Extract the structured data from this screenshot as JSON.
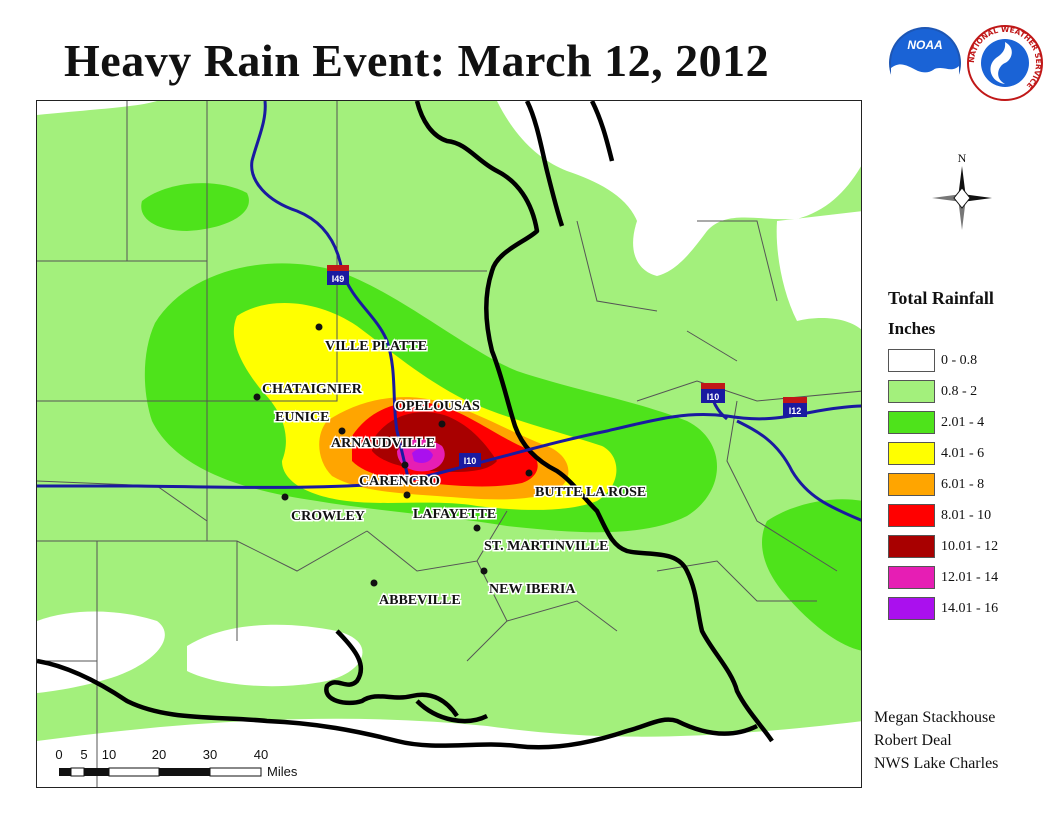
{
  "title": "Heavy Rain Event: March 12, 2012",
  "logos": {
    "noaa_text": "NOAA",
    "nws_text": "NATIONAL WEATHER SERVICE"
  },
  "compass": {
    "north_label": "N"
  },
  "legend": {
    "title": "Total Rainfall",
    "units": "Inches",
    "items": [
      {
        "label": "0 - 0.8",
        "color": "#ffffff"
      },
      {
        "label": "0.8 - 2",
        "color": "#a3f07c"
      },
      {
        "label": "2.01 - 4",
        "color": "#4ee31b"
      },
      {
        "label": "4.01 - 6",
        "color": "#ffff00"
      },
      {
        "label": "6.01 - 8",
        "color": "#ffa500"
      },
      {
        "label": "8.01 - 10",
        "color": "#ff0000"
      },
      {
        "label": "10.01 - 12",
        "color": "#a80000"
      },
      {
        "label": "12.01 - 14",
        "color": "#e61eb4"
      },
      {
        "label": "14.01 - 16",
        "color": "#aa10ee"
      }
    ]
  },
  "cities": [
    {
      "name": "VILLE PLATTE"
    },
    {
      "name": "CHATAIGNIER"
    },
    {
      "name": "EUNICE"
    },
    {
      "name": "OPELOUSAS"
    },
    {
      "name": "ARNAUDVILLE"
    },
    {
      "name": "CARENCRO"
    },
    {
      "name": "BUTTE LA ROSE"
    },
    {
      "name": "CROWLEY"
    },
    {
      "name": "LAFAYETTE"
    },
    {
      "name": "ST. MARTINVILLE"
    },
    {
      "name": "NEW IBERIA"
    },
    {
      "name": "ABBEVILLE"
    }
  ],
  "highways": [
    {
      "name": "I49"
    },
    {
      "name": "I10"
    },
    {
      "name": "I10"
    },
    {
      "name": "I12"
    }
  ],
  "scale_bar": {
    "ticks": [
      "0",
      "5",
      "10",
      "20",
      "30",
      "40"
    ],
    "unit": "Miles"
  },
  "credits": [
    "Megan Stackhouse",
    "Robert Deal",
    "NWS Lake Charles"
  ],
  "colors": {
    "interstate": "#1a1aa0",
    "parish_border": "#000000",
    "county_line": "#555555"
  }
}
